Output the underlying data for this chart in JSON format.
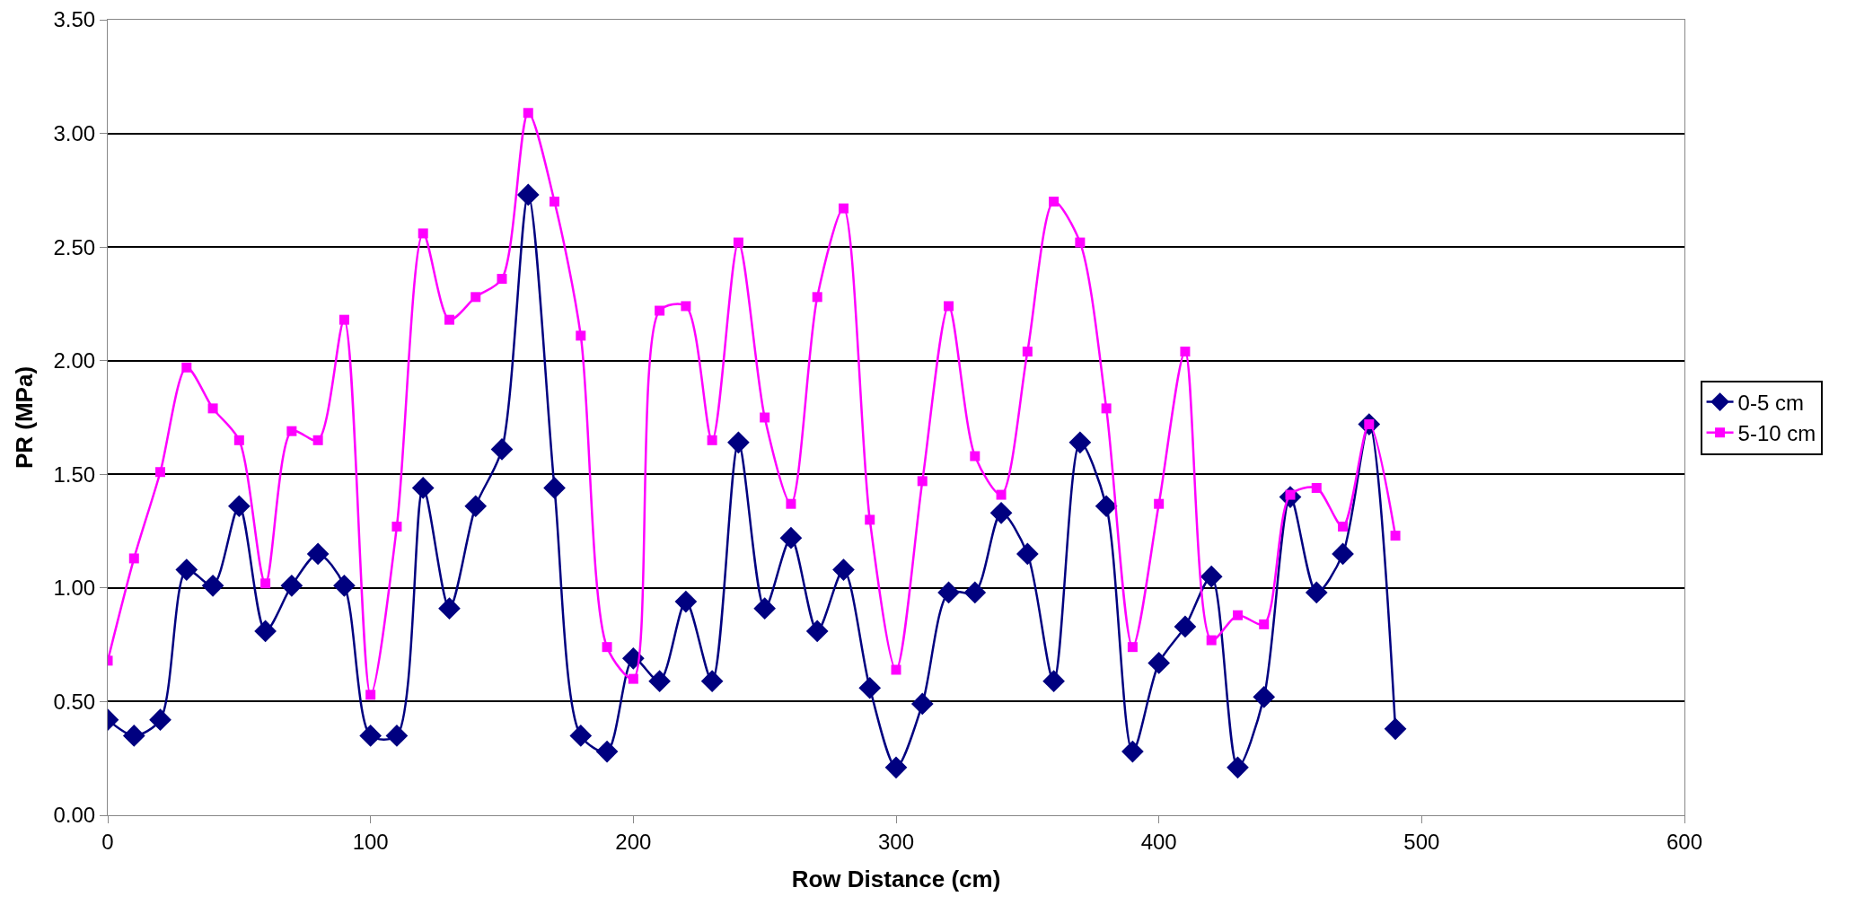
{
  "chart_data": {
    "type": "line",
    "xlabel": "Row Distance (cm)",
    "ylabel": "PR (MPa)",
    "x": [
      0,
      10,
      20,
      30,
      40,
      50,
      60,
      70,
      80,
      90,
      100,
      110,
      120,
      130,
      140,
      150,
      160,
      170,
      180,
      190,
      200,
      210,
      220,
      230,
      240,
      250,
      260,
      270,
      280,
      290,
      300,
      310,
      320,
      330,
      340,
      350,
      360,
      370,
      380,
      390,
      400,
      410,
      420,
      430,
      440,
      450,
      460,
      470,
      480,
      490
    ],
    "series": [
      {
        "name": "0-5 cm",
        "color": "#000080",
        "marker": "diamond",
        "values": [
          0.42,
          0.35,
          0.42,
          1.08,
          1.01,
          1.36,
          0.81,
          1.01,
          1.15,
          1.01,
          0.35,
          0.35,
          1.44,
          0.91,
          1.36,
          1.61,
          2.73,
          1.44,
          0.35,
          0.28,
          0.69,
          0.59,
          0.94,
          0.59,
          1.64,
          0.91,
          1.22,
          0.81,
          1.08,
          0.56,
          0.21,
          0.49,
          0.98,
          0.98,
          1.33,
          1.15,
          0.59,
          1.64,
          1.36,
          0.28,
          0.67,
          0.83,
          1.05,
          0.21,
          0.52,
          1.4,
          0.98,
          1.15,
          1.72,
          0.38
        ]
      },
      {
        "name": "5-10 cm",
        "color": "#ff00ff",
        "marker": "square",
        "values": [
          0.68,
          1.13,
          1.51,
          1.97,
          1.79,
          1.65,
          1.02,
          1.69,
          1.65,
          2.18,
          0.53,
          1.27,
          2.56,
          2.18,
          2.28,
          2.36,
          3.09,
          2.7,
          2.11,
          0.74,
          0.6,
          2.22,
          2.24,
          1.65,
          2.52,
          1.75,
          1.37,
          2.28,
          2.67,
          1.3,
          0.64,
          1.47,
          2.24,
          1.58,
          1.41,
          2.04,
          2.7,
          2.52,
          1.79,
          0.74,
          1.37,
          2.04,
          0.77,
          0.88,
          0.84,
          1.41,
          1.44,
          1.27,
          1.72,
          1.23
        ]
      }
    ],
    "xlim": [
      0,
      600
    ],
    "xticks": [
      0,
      100,
      200,
      300,
      400,
      500,
      600
    ],
    "ylim": [
      0,
      3.5
    ],
    "yticks": [
      {
        "value": 0,
        "label": "0.00"
      },
      {
        "value": 0.5,
        "label": "0.50"
      },
      {
        "value": 1,
        "label": "1.00"
      },
      {
        "value": 1.5,
        "label": "1.50"
      },
      {
        "value": 2,
        "label": "2.00"
      },
      {
        "value": 2.5,
        "label": "2.50"
      },
      {
        "value": 3,
        "label": "3.00"
      },
      {
        "value": 3.5,
        "label": "3.50"
      }
    ],
    "grid": "y",
    "legend": "right",
    "line_style": "solid"
  }
}
